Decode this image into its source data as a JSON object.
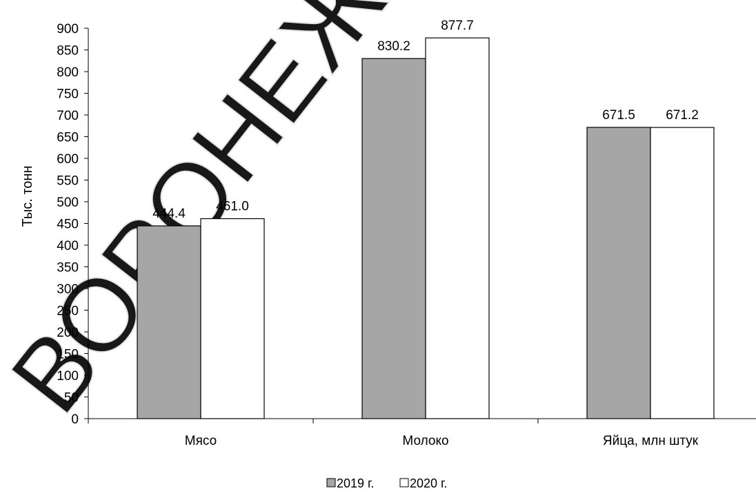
{
  "chart_data": {
    "type": "bar",
    "title": "",
    "xlabel": "",
    "ylabel": "Тыс. тонн",
    "categories": [
      "Мясо",
      "Молоко",
      "Яйца, млн штук"
    ],
    "series": [
      {
        "name": "2019 г.",
        "values": [
          444.4,
          830.2,
          671.5
        ],
        "color": "#a6a6a6",
        "labels": [
          "444.4",
          "830.2",
          "671.5"
        ]
      },
      {
        "name": "2020 г.",
        "values": [
          461.0,
          877.7,
          671.2
        ],
        "color": "#ffffff",
        "labels": [
          "461.0",
          "877.7",
          "671.2"
        ]
      }
    ],
    "ylim": [
      0,
      900
    ],
    "yticks": [
      0,
      50,
      100,
      150,
      200,
      250,
      300,
      350,
      400,
      450,
      500,
      550,
      600,
      650,
      700,
      750,
      800,
      850,
      900
    ],
    "grid": false,
    "legend_position": "bottom"
  },
  "watermark": {
    "text": "ВОРОНЕЖ",
    "color": "#e0e0e0"
  }
}
